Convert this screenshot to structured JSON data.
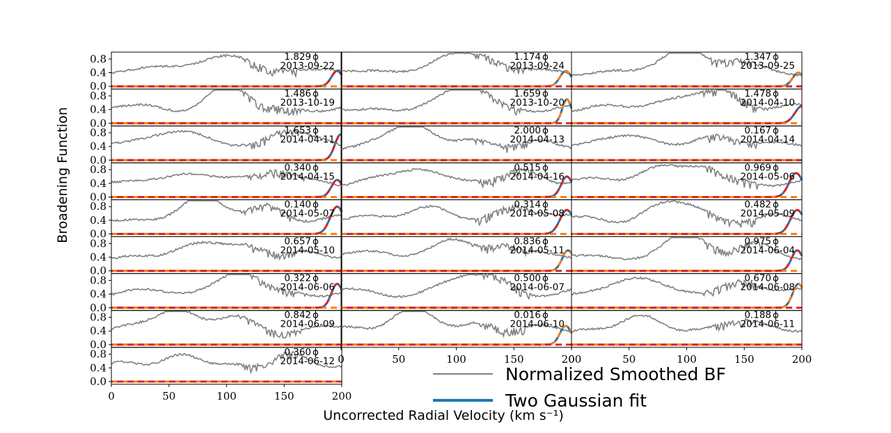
{
  "figure": {
    "ylabel": "Broadening Function",
    "xlabel": "Uncorrected Radial Velocity (km s⁻¹)",
    "phi_symbol": "ϕ"
  },
  "legend": {
    "entries": [
      {
        "label": "Normalized Smoothed BF",
        "color": "#808080"
      },
      {
        "label": "Two Gaussian fit",
        "color": "#1f77b4"
      }
    ]
  },
  "chart_data": {
    "type": "line",
    "layout": {
      "columns": 3,
      "rows": 9,
      "panel_count": 25,
      "x_bottom_axes": [
        "panel-col0-row8",
        "panel-col1-row7",
        "panel-col2-row7"
      ]
    },
    "xlim": [
      0,
      200
    ],
    "ylim": [
      -0.08,
      1.0
    ],
    "xticks": [
      0,
      50,
      100,
      150,
      200
    ],
    "yticks": [
      0.0,
      0.4,
      0.8
    ],
    "series_styles": {
      "bf": {
        "color": "#808080"
      },
      "fit": {
        "color": "#1f77b4"
      },
      "component1": {
        "color": "#ff7f0e",
        "dashed": true
      },
      "component2": {
        "color": "#d62728",
        "dashed": true
      }
    },
    "panels": [
      {
        "date": "2013-09-22",
        "phase": "1.829",
        "peak": {
          "amp": 0.45,
          "center": 196,
          "sigma": 5
        },
        "comp1_primary": false
      },
      {
        "date": "2013-09-24",
        "phase": "1.174",
        "peak": {
          "amp": 0.45,
          "center": 195,
          "sigma": 5
        },
        "comp1_primary": true
      },
      {
        "date": "2013-09-25",
        "phase": "1.347",
        "peak": {
          "amp": 0.4,
          "center": 197,
          "sigma": 5
        },
        "comp1_primary": true
      },
      {
        "date": "2013-10-19",
        "phase": "1.486",
        "peak": {
          "amp": 0.0,
          "center": 196,
          "sigma": 5
        },
        "comp1_primary": true
      },
      {
        "date": "2013-10-20",
        "phase": "1.659",
        "peak": {
          "amp": 0.7,
          "center": 196,
          "sigma": 4
        },
        "comp1_primary": true
      },
      {
        "date": "2014-04-10",
        "phase": "1.478",
        "peak": {
          "amp": 0.5,
          "center": 200,
          "sigma": 6
        },
        "comp1_primary": false
      },
      {
        "date": "2014-04-11",
        "phase": "1.653",
        "peak": {
          "amp": 0.75,
          "center": 199,
          "sigma": 5
        },
        "comp1_primary": false
      },
      {
        "date": "2014-04-13",
        "phase": "2.000",
        "peak": {
          "amp": 0.0,
          "center": 196,
          "sigma": 5
        },
        "comp1_primary": true
      },
      {
        "date": "2014-04-14",
        "phase": "0.167",
        "peak": {
          "amp": 0.0,
          "center": 196,
          "sigma": 5
        },
        "comp1_primary": true
      },
      {
        "date": "2014-04-15",
        "phase": "0.340",
        "peak": {
          "amp": 0.5,
          "center": 196,
          "sigma": 5
        },
        "comp1_primary": false
      },
      {
        "date": "2014-04-16",
        "phase": "0.515",
        "peak": {
          "amp": 0.6,
          "center": 196,
          "sigma": 5
        },
        "comp1_primary": false
      },
      {
        "date": "2014-05-06",
        "phase": "0.969",
        "peak": {
          "amp": 0.7,
          "center": 195,
          "sigma": 6
        },
        "comp1_primary": false
      },
      {
        "date": "2014-05-07",
        "phase": "0.140",
        "peak": {
          "amp": 0.8,
          "center": 196,
          "sigma": 6
        },
        "comp1_primary": false
      },
      {
        "date": "2014-05-08",
        "phase": "0.314",
        "peak": {
          "amp": 0.7,
          "center": 196,
          "sigma": 6
        },
        "comp1_primary": false
      },
      {
        "date": "2014-05-09",
        "phase": "0.482",
        "peak": {
          "amp": 0.7,
          "center": 196,
          "sigma": 6
        },
        "comp1_primary": false
      },
      {
        "date": "2014-05-10",
        "phase": "0.657",
        "peak": {
          "amp": 0.0,
          "center": 196,
          "sigma": 5
        },
        "comp1_primary": true
      },
      {
        "date": "2014-05-11",
        "phase": "0.836",
        "peak": {
          "amp": 0.6,
          "center": 197,
          "sigma": 5
        },
        "comp1_primary": true
      },
      {
        "date": "2014-06-04",
        "phase": "0.975",
        "peak": {
          "amp": 0.6,
          "center": 196,
          "sigma": 5
        },
        "comp1_primary": false
      },
      {
        "date": "2014-06-06",
        "phase": "0.322",
        "peak": {
          "amp": 0.7,
          "center": 196,
          "sigma": 5
        },
        "comp1_primary": false
      },
      {
        "date": "2014-06-07",
        "phase": "0.500",
        "peak": {
          "amp": 0.0,
          "center": 196,
          "sigma": 5
        },
        "comp1_primary": true
      },
      {
        "date": "2014-06-08",
        "phase": "0.670",
        "peak": {
          "amp": 0.7,
          "center": 197,
          "sigma": 5
        },
        "comp1_primary": true
      },
      {
        "date": "2014-06-09",
        "phase": "0.842",
        "peak": {
          "amp": 0.0,
          "center": 196,
          "sigma": 5
        },
        "comp1_primary": true
      },
      {
        "date": "2014-06-10",
        "phase": "0.016",
        "peak": {
          "amp": 0.55,
          "center": 195,
          "sigma": 5
        },
        "comp1_primary": true
      },
      {
        "date": "2014-06-11",
        "phase": "0.188",
        "peak": {
          "amp": 0.0,
          "center": 196,
          "sigma": 5
        },
        "comp1_primary": true
      },
      {
        "date": "2014-06-12",
        "phase": "0.360",
        "peak": {
          "amp": 0.0,
          "center": 196,
          "sigma": 5
        },
        "comp1_primary": true
      }
    ]
  }
}
